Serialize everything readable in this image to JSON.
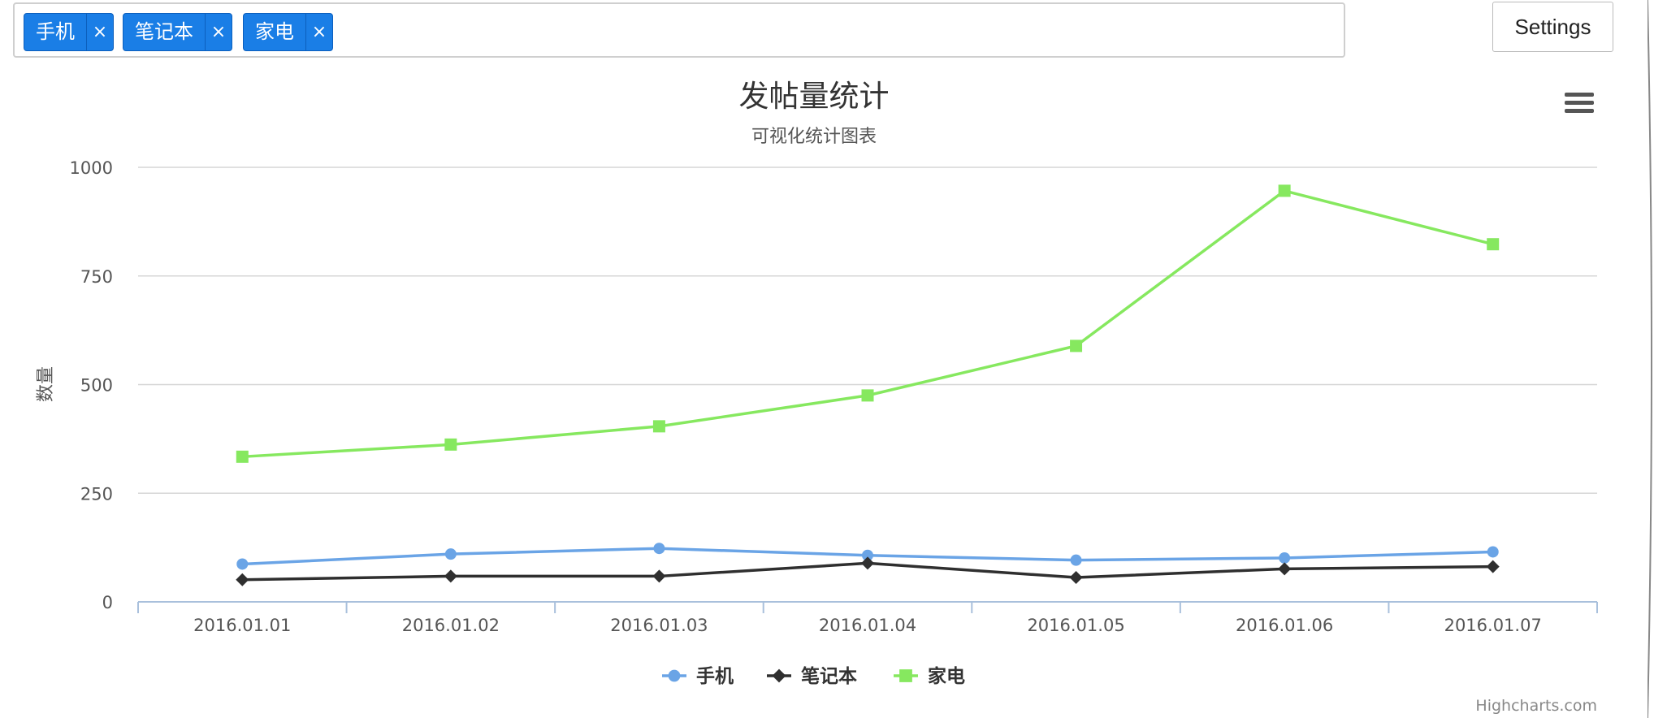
{
  "filter": {
    "tags": [
      {
        "label": "手机",
        "remove": "×"
      },
      {
        "label": "笔记本",
        "remove": "×"
      },
      {
        "label": "家电",
        "remove": "×"
      }
    ]
  },
  "settings": {
    "label": "Settings"
  },
  "chart_menu_icon": "hamburger-menu-icon",
  "credits": "Highcharts.com",
  "chart_data": {
    "type": "line",
    "title": "发帖量统计",
    "subtitle": "可视化统计图表",
    "xlabel": "",
    "ylabel": "数量",
    "categories": [
      "2016.01.01",
      "2016.01.02",
      "2016.01.03",
      "2016.01.04",
      "2016.01.05",
      "2016.01.06",
      "2016.01.07"
    ],
    "ylim": [
      0,
      1000
    ],
    "yticks": [
      "0",
      "250",
      "500",
      "750",
      "1000"
    ],
    "grid": true,
    "legend_position": "bottom-center",
    "series": [
      {
        "name": "手机",
        "color": "#6aa4e6",
        "marker": "circle",
        "values": [
          87,
          110,
          123,
          107,
          96,
          101,
          115
        ]
      },
      {
        "name": "笔记本",
        "color": "#2f2f2f",
        "marker": "diamond",
        "values": [
          51,
          59,
          59,
          89,
          56,
          76,
          81
        ]
      },
      {
        "name": "家电",
        "color": "#86e85f",
        "marker": "square",
        "values": [
          334,
          362,
          404,
          475,
          589,
          946,
          823
        ]
      }
    ]
  }
}
